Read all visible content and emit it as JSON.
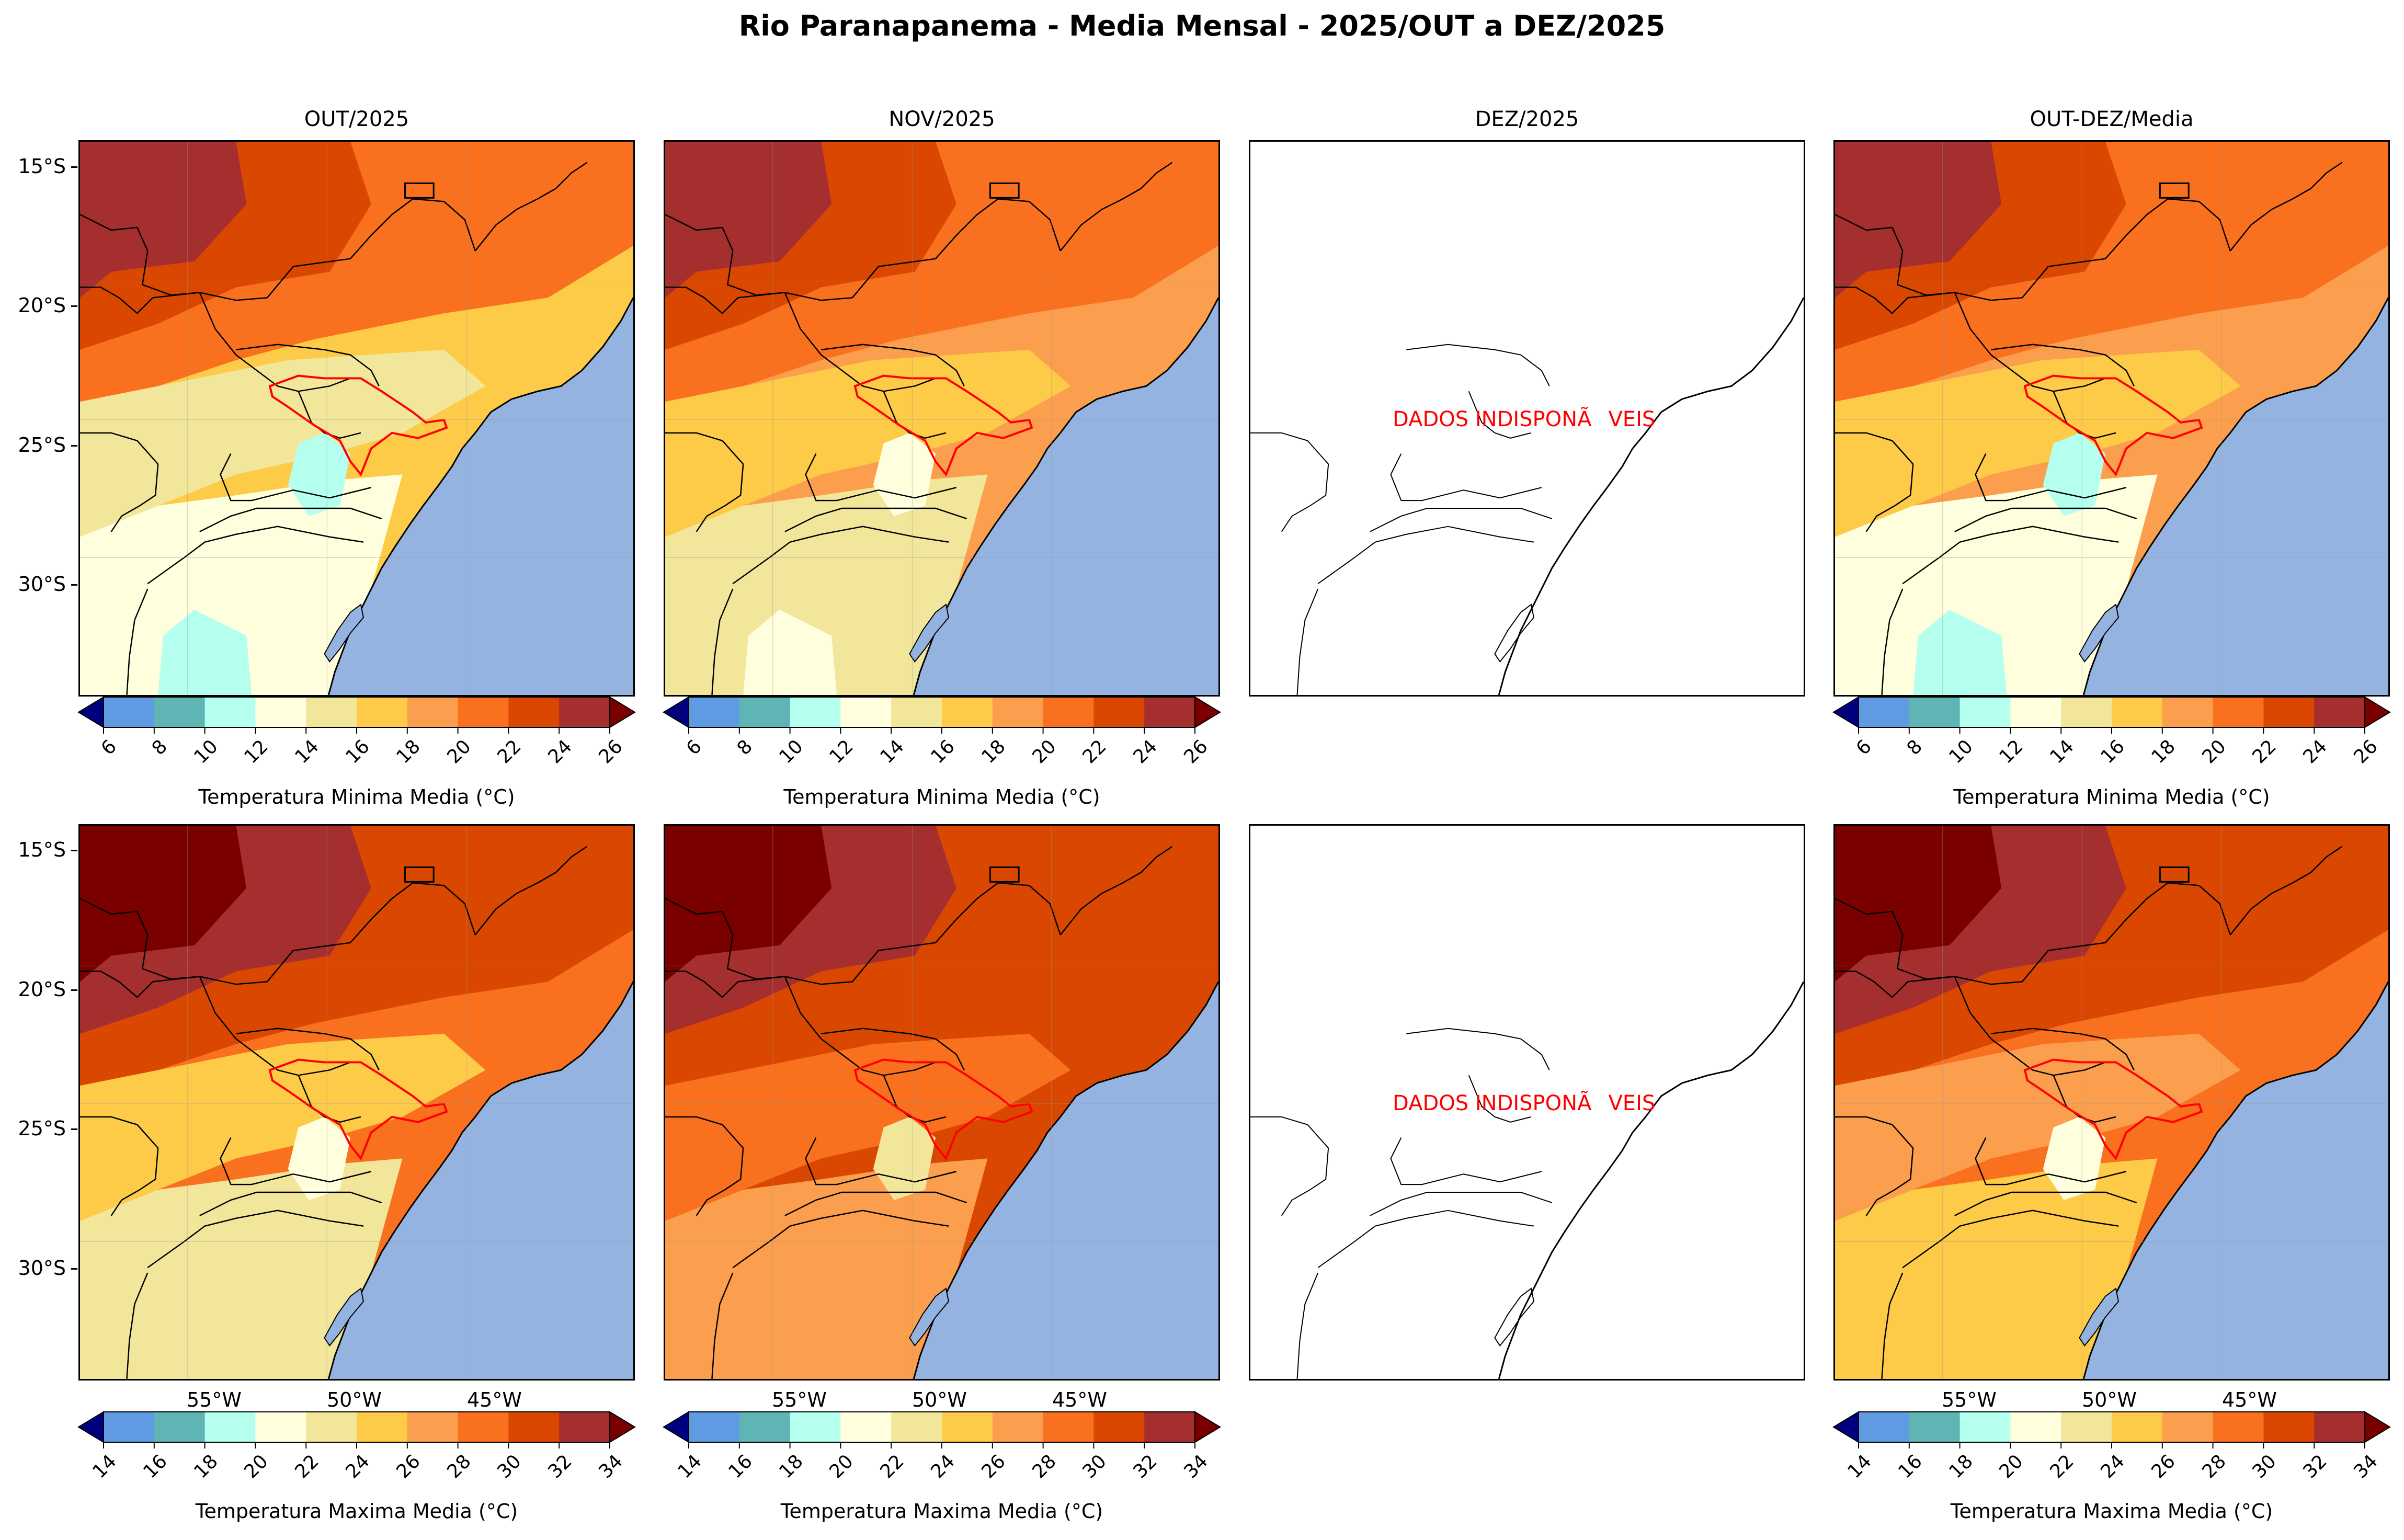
{
  "title": "Rio Paranapanema - Media Mensal - 2025/OUT a DEZ/2025",
  "panels": {
    "titles": [
      "OUT/2025",
      "NOV/2025",
      "DEZ/2025",
      "OUT-DEZ/Media"
    ],
    "nodata_text": "DADOS INDISPONÃVEIS"
  },
  "axes": {
    "lat_labels": [
      "15°S",
      "20°S",
      "25°S",
      "30°S"
    ],
    "lon_labels": [
      "55°W",
      "50°W",
      "45°W"
    ]
  },
  "colorbars": {
    "min_label": "Temperatura Minima Media ($^\\circ$C)",
    "max_label": "Temperatura Maxima Media ($^\\circ$C)",
    "min_label_display": "Temperatura Minima Media (°C)",
    "max_label_display": "Temperatura Maxima Media (°C)",
    "min_ticks": [
      "6",
      "8",
      "10",
      "12",
      "14",
      "16",
      "18",
      "20",
      "22",
      "24",
      "26"
    ],
    "max_ticks": [
      "14",
      "16",
      "18",
      "20",
      "22",
      "24",
      "26",
      "28",
      "30",
      "32",
      "34"
    ],
    "colors": [
      "#00007f",
      "#5f9be3",
      "#5fb4b4",
      "#b4ffee",
      "#ffffdd",
      "#f2e69b",
      "#fdcb47",
      "#fb9e4d",
      "#f9701e",
      "#d94701",
      "#a52e2e",
      "#7a0000"
    ]
  },
  "map_colors": {
    "ocean": "#94b3e0",
    "border": "#000000",
    "basin": "#ff0000"
  }
}
